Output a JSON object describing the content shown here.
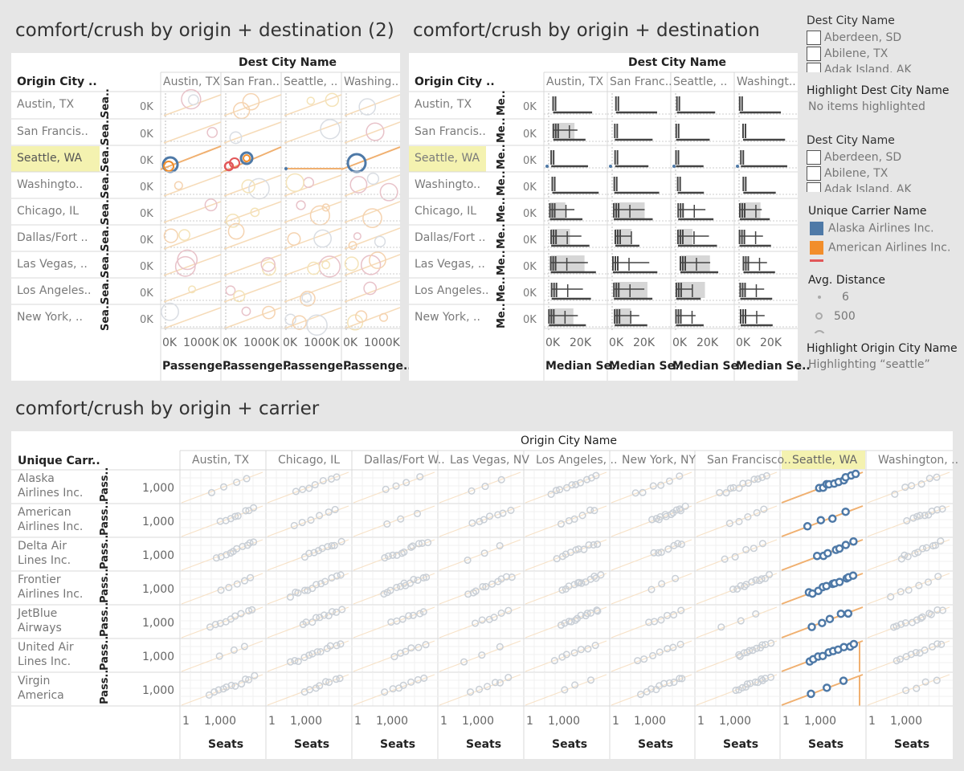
{
  "panel1": {
    "title": "comfort/crush by origin + destination (2)",
    "col_header": "Dest City Name",
    "row_header": "Origin City ..",
    "columns": [
      "Austin, TX",
      "San Fran..",
      "Seattle, ..",
      "Washing.."
    ],
    "rows": [
      "Austin, TX",
      "San Francis..",
      "Seattle, WA",
      "Washingto..",
      "Chicago, IL",
      "Dallas/Fort ..",
      "Las Vegas, ..",
      "Los Angeles..",
      "New York, .."
    ],
    "highlighted_row": "Seattle, WA",
    "y_axis_label": "Sea..",
    "y_tick": "0K",
    "x_ticks": [
      "0K",
      "1000K"
    ],
    "x_axis_title": "Passenge.."
  },
  "panel2": {
    "title": "comfort/crush by origin + destination",
    "col_header": "Dest City Name",
    "row_header": "Origin City ..",
    "columns": [
      "Austin, TX",
      "San Franc..",
      "Seattle, ..",
      "Washingt.."
    ],
    "rows": [
      "Austin, TX",
      "San Francis..",
      "Seattle, WA",
      "Washingto..",
      "Chicago, IL",
      "Dallas/Fort ..",
      "Las Vegas, ..",
      "Los Angeles..",
      "New York, .."
    ],
    "highlighted_row": "Seattle, WA",
    "y_axis_label": "Me..",
    "y_tick": "0K",
    "x_ticks": [
      "0K",
      "20K"
    ],
    "x_axis_title": "Median Se.."
  },
  "legend": {
    "dest_filter_1": {
      "title": "Dest City Name",
      "items": [
        "Aberdeen, SD",
        "Abilene, TX",
        "Adak Island, AK"
      ]
    },
    "highlight_dest": {
      "title": "Highlight Dest City Name",
      "value": "No items highlighted"
    },
    "dest_filter_2": {
      "title": "Dest City Name",
      "items": [
        "Aberdeen, SD",
        "Abilene, TX",
        "Adak Island, AK"
      ]
    },
    "carrier": {
      "title": "Unique Carrier Name",
      "items": [
        {
          "label": "Alaska Airlines Inc.",
          "color": "#4e79a7"
        },
        {
          "label": "American Airlines Inc.",
          "color": "#f28e2b"
        }
      ],
      "third_color": "#e15759"
    },
    "distance": {
      "title": "Avg. Distance",
      "items": [
        "6",
        "500"
      ]
    },
    "highlight_origin": {
      "title": "Highlight Origin City Name",
      "value": "Highlighting “seattle”"
    }
  },
  "panel3": {
    "title": "comfort/crush by origin + carrier",
    "col_header": "Origin City Name",
    "row_header": "Unique Carr..",
    "columns": [
      "Austin, TX",
      "Chicago, IL",
      "Dallas/Fort W..",
      "Las Vegas, NV",
      "Los Angeles, ..",
      "New York, NY",
      "San Francisco..",
      "Seattle, WA",
      "Washington, .."
    ],
    "highlighted_column": "Seattle, WA",
    "rows": [
      [
        "Alaska",
        "Airlines Inc."
      ],
      [
        "American",
        "Airlines Inc."
      ],
      [
        "Delta Air",
        "Lines Inc."
      ],
      [
        "Frontier",
        "Airlines Inc."
      ],
      [
        "JetBlue",
        "Airways"
      ],
      [
        "United Air",
        "Lines Inc."
      ],
      [
        "Virgin",
        "America"
      ]
    ],
    "y_axis_label": "Pass..",
    "y_tick": "1,000",
    "x_ticks": [
      "1",
      "1,000"
    ],
    "x_axis_title": "Seats"
  },
  "colors": {
    "accent_blue": "#4e79a7",
    "accent_orange": "#f28e2b",
    "highlight": "#f4f2b0",
    "faded": "#c9cfd6"
  }
}
